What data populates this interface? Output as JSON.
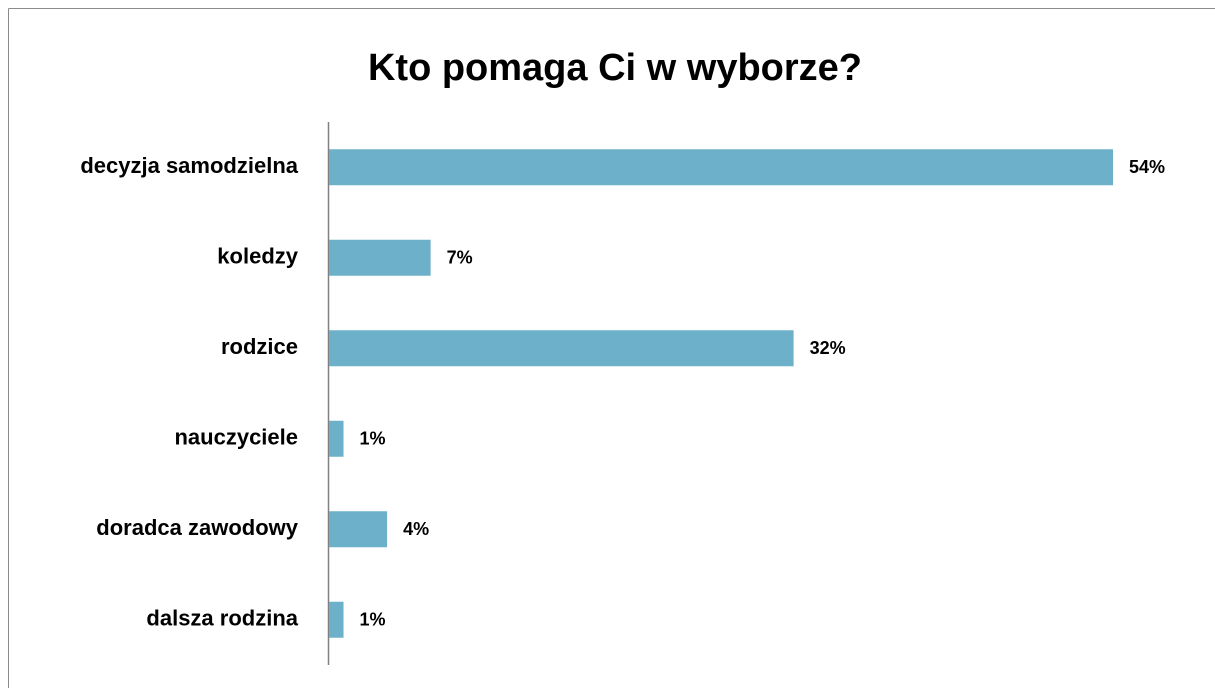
{
  "chart_data": {
    "type": "bar",
    "orientation": "horizontal",
    "title": "Kto pomaga Ci w wyborze?",
    "categories": [
      "decyzja samodzielna",
      "koledzy",
      "rodzice",
      "nauczyciele",
      "doradca zawodowy",
      "dalsza rodzina"
    ],
    "values": [
      54,
      7,
      32,
      1,
      4,
      1
    ],
    "value_labels": [
      "54%",
      "7%",
      "32%",
      "1%",
      "4%",
      "1%"
    ],
    "color": "#6cb0c9",
    "grid": false
  }
}
